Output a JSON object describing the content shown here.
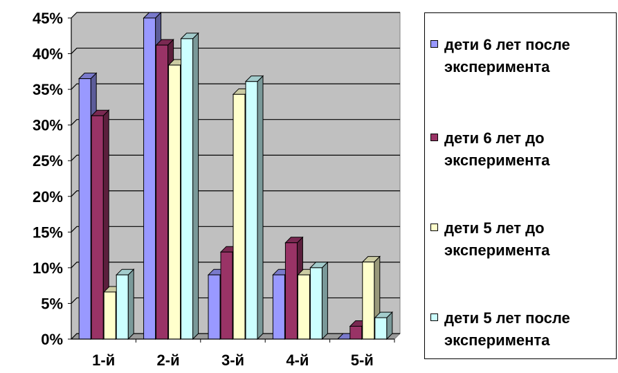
{
  "chart_data": {
    "type": "bar",
    "title": "",
    "xlabel": "",
    "ylabel": "",
    "categories": [
      "1-й",
      "2-й",
      "3-й",
      "4-й",
      "5-й"
    ],
    "ylim": [
      0,
      45
    ],
    "y_ticks": [
      "0%",
      "5%",
      "10%",
      "15%",
      "20%",
      "25%",
      "30%",
      "35%",
      "40%",
      "45%"
    ],
    "grid": true,
    "legend_position": "right",
    "series": [
      {
        "name": "дети 6 лет после эксперимента",
        "color": "#9999ff",
        "values": [
          36.5,
          45,
          9,
          9,
          0
        ]
      },
      {
        "name": "дети 6 лет до эксперимента",
        "color": "#993366",
        "values": [
          31.3,
          41.2,
          12.2,
          13.5,
          1.8
        ]
      },
      {
        "name": "дети 5 лет до эксперимента",
        "color": "#ffffcc",
        "values": [
          6.6,
          38.4,
          34.3,
          9,
          10.8
        ]
      },
      {
        "name": "дети 5 лет после эксперимента",
        "color": "#ccffff",
        "values": [
          9,
          42.1,
          36.1,
          10,
          3
        ]
      }
    ]
  }
}
